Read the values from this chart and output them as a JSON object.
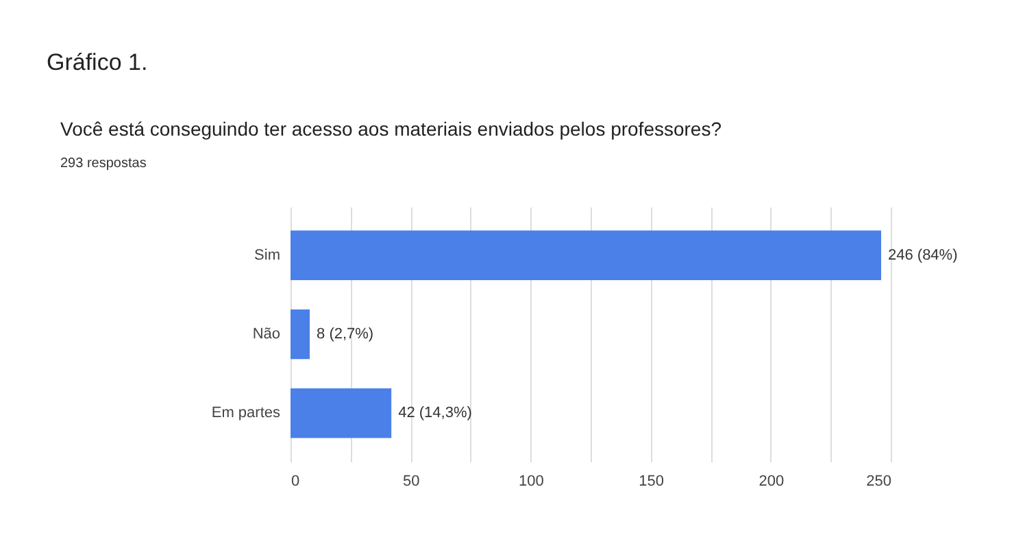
{
  "chart_data": {
    "type": "bar",
    "orientation": "horizontal",
    "title": "Gráfico 1.",
    "subtitle": "Você está conseguindo ter acesso aos materiais enviados pelos professores?",
    "annotations": [
      "293 respostas"
    ],
    "categories": [
      "Sim",
      "Não",
      "Em partes"
    ],
    "values": [
      246,
      8,
      42
    ],
    "color": "#4a80e8",
    "value_labels": [
      "246 (84%)",
      "8 (2,7%)",
      "42 (14,3%)"
    ],
    "xlim": [
      0,
      250
    ],
    "xticks": [
      0,
      {
        "value": 25,
        "label": null
      },
      50,
      {
        "value": 75,
        "label": null
      },
      100,
      {
        "value": 125,
        "label": null
      },
      150,
      {
        "value": 175,
        "label": null
      },
      200,
      {
        "value": 225,
        "label": null
      },
      250
    ],
    "grid": "x"
  }
}
